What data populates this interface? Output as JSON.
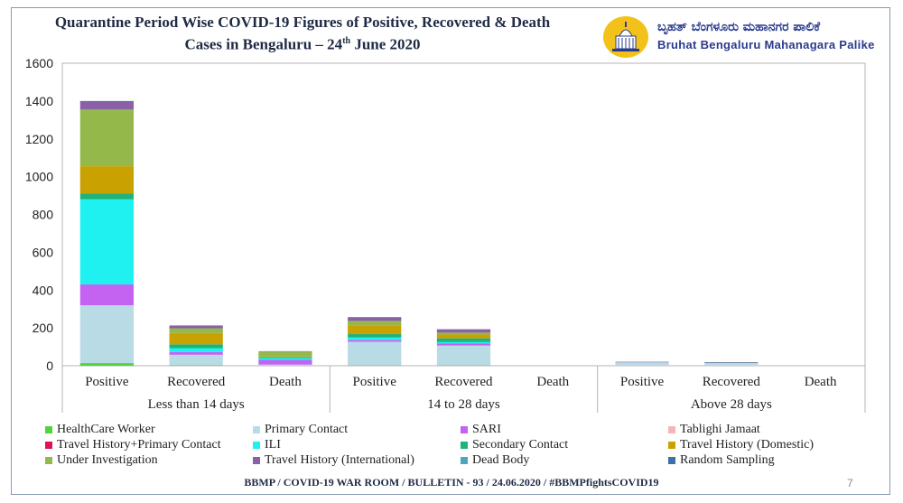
{
  "header": {
    "title_line1": "Quarantine Period Wise COVID-19 Figures of Positive,  Recovered  & Death",
    "title_line2_pre": "Cases in Bengaluru – 24",
    "title_line2_sup": "th",
    "title_line2_post": " June 2020"
  },
  "logo": {
    "icon": "vidhana-soudha-emblem-icon",
    "kannada_text": "ಬೃಹತ್ ಬೆಂಗಳೂರು ಮಹಾನಗರ ಪಾಲಿಕೆ",
    "english_text": "Bruhat Bengaluru Mahanagara Palike"
  },
  "footer": {
    "text": "BBMP / COVID-19 WAR ROOM / BULLETIN - 93 / 24.06.2020 / #BBMPfightsCOVID19",
    "page_number": "7"
  },
  "chart_data": {
    "type": "bar",
    "stacked": true,
    "ylim": [
      0,
      1600
    ],
    "yticks": [
      0,
      200,
      400,
      600,
      800,
      1000,
      1200,
      1400,
      1600
    ],
    "grid": false,
    "legend_position": "bottom",
    "groups": [
      "Less than 14 days",
      "14 to 28 days",
      "Above 28 days"
    ],
    "categories": [
      "Positive",
      "Recovered",
      "Death",
      "Positive",
      "Recovered",
      "Death",
      "Positive",
      "Recovered",
      "Death"
    ],
    "series": [
      {
        "name": "HealthCare Worker",
        "color": "#4fd43a",
        "values": [
          14,
          3,
          1,
          2,
          2,
          0,
          0,
          0,
          0
        ]
      },
      {
        "name": "Primary Contact",
        "color": "#b9dbe6",
        "values": [
          306,
          55,
          5,
          125,
          105,
          0,
          18,
          14,
          0
        ]
      },
      {
        "name": "SARI",
        "color": "#c463f2",
        "values": [
          110,
          15,
          25,
          10,
          10,
          0,
          0,
          0,
          0
        ]
      },
      {
        "name": "Tablighi Jamaat",
        "color": "#f3b6bd",
        "values": [
          0,
          0,
          0,
          0,
          0,
          0,
          0,
          0,
          0
        ]
      },
      {
        "name": "Travel History+Primary Contact",
        "color": "#e0115a",
        "values": [
          0,
          0,
          0,
          0,
          0,
          0,
          0,
          0,
          0
        ]
      },
      {
        "name": "ILI",
        "color": "#1ff0f0",
        "values": [
          450,
          20,
          10,
          12,
          8,
          0,
          0,
          0,
          0
        ]
      },
      {
        "name": "Secondary Contact",
        "color": "#1db47a",
        "values": [
          30,
          20,
          5,
          18,
          20,
          0,
          0,
          2,
          0
        ]
      },
      {
        "name": "Travel History (Domestic)",
        "color": "#c9a100",
        "values": [
          145,
          60,
          3,
          45,
          20,
          0,
          0,
          0,
          0
        ]
      },
      {
        "name": "Under Investigation",
        "color": "#95b84a",
        "values": [
          300,
          25,
          26,
          25,
          10,
          0,
          0,
          0,
          0
        ]
      },
      {
        "name": "Travel History (International)",
        "color": "#8a60a6",
        "values": [
          40,
          15,
          2,
          20,
          18,
          0,
          3,
          3,
          0
        ]
      },
      {
        "name": "Dead Body",
        "color": "#4aa6bd",
        "values": [
          0,
          0,
          0,
          0,
          0,
          0,
          0,
          0,
          0
        ]
      },
      {
        "name": "Random Sampling",
        "color": "#3d6fa8",
        "values": [
          5,
          0,
          0,
          0,
          0,
          0,
          0,
          0,
          0
        ]
      }
    ]
  }
}
